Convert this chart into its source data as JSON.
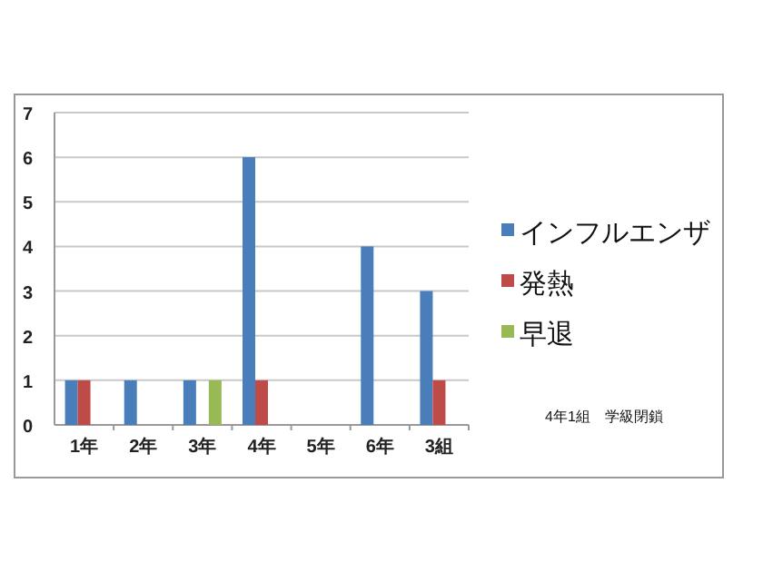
{
  "chart_data": {
    "type": "bar",
    "categories": [
      "1年",
      "2年",
      "3年",
      "4年",
      "5年",
      "6年",
      "3組"
    ],
    "series": [
      {
        "name": "インフルエンザ",
        "color": "#4a7ebb",
        "values": [
          1,
          1,
          1,
          6,
          0,
          4,
          3
        ]
      },
      {
        "name": "発熱",
        "color": "#be4b48",
        "values": [
          1,
          0,
          0,
          1,
          0,
          0,
          1
        ]
      },
      {
        "name": "早退",
        "color": "#98b954",
        "values": [
          0,
          0,
          1,
          0,
          0,
          0,
          0
        ]
      }
    ],
    "ylim": [
      0,
      7
    ],
    "yticks": [
      0,
      1,
      2,
      3,
      4,
      5,
      6,
      7
    ],
    "grid": "y",
    "legend": "right",
    "annotations": [
      "4年1組　学級閉鎖"
    ]
  }
}
